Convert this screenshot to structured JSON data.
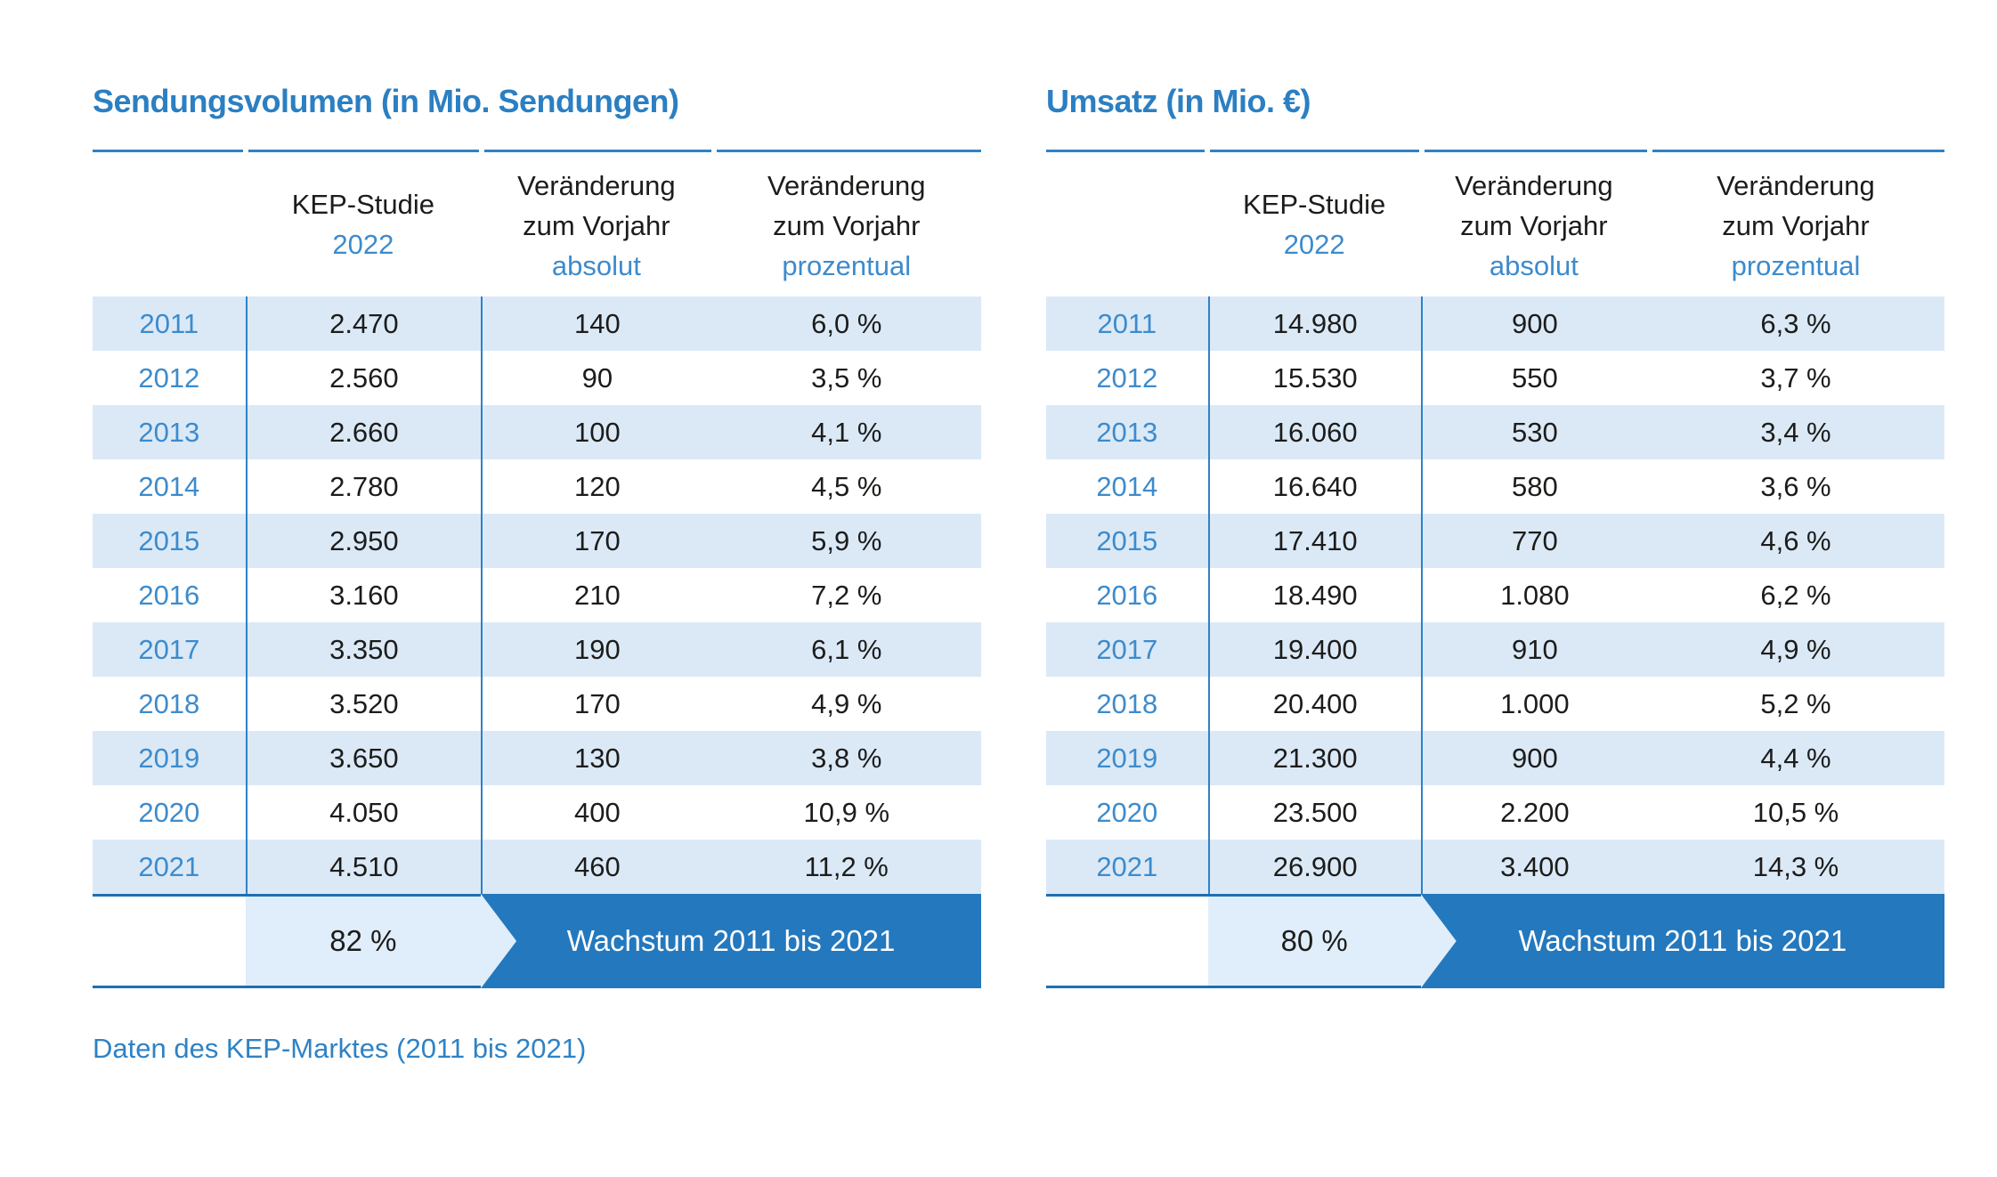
{
  "caption": "Daten des KEP-Marktes (2011 bis 2021)",
  "colors": {
    "accent_blue": "#2b7fc2",
    "light_blue_text": "#3d8bcc",
    "row_stripe": "#dbe9f7",
    "chevron_light": "#e0edfa",
    "growth_bar": "#2478bd",
    "rule_dark": "#1d6fb3",
    "body_text": "#1c1c1a"
  },
  "tables": [
    {
      "title": "Sendungsvolumen (in Mio. Sendungen)",
      "header": {
        "study_line1": "KEP-Studie",
        "study_line2": "2022",
        "change_line1": "Veränderung",
        "change_line2": "zum Vorjahr",
        "absolute_label": "absolut",
        "percent_label": "prozentual"
      },
      "rows": [
        {
          "year": "2011",
          "value": "2.470",
          "abs": "140",
          "pct": "6,0 %"
        },
        {
          "year": "2012",
          "value": "2.560",
          "abs": "90",
          "pct": "3,5 %"
        },
        {
          "year": "2013",
          "value": "2.660",
          "abs": "100",
          "pct": "4,1 %"
        },
        {
          "year": "2014",
          "value": "2.780",
          "abs": "120",
          "pct": "4,5 %"
        },
        {
          "year": "2015",
          "value": "2.950",
          "abs": "170",
          "pct": "5,9 %"
        },
        {
          "year": "2016",
          "value": "3.160",
          "abs": "210",
          "pct": "7,2 %"
        },
        {
          "year": "2017",
          "value": "3.350",
          "abs": "190",
          "pct": "6,1 %"
        },
        {
          "year": "2018",
          "value": "3.520",
          "abs": "170",
          "pct": "4,9 %"
        },
        {
          "year": "2019",
          "value": "3.650",
          "abs": "130",
          "pct": "3,8 %"
        },
        {
          "year": "2020",
          "value": "4.050",
          "abs": "400",
          "pct": "10,9 %"
        },
        {
          "year": "2021",
          "value": "4.510",
          "abs": "460",
          "pct": "11,2 %"
        }
      ],
      "growth": {
        "value": "82 %",
        "label": "Wachstum 2011 bis 2021"
      }
    },
    {
      "title": "Umsatz (in Mio. €)",
      "header": {
        "study_line1": "KEP-Studie",
        "study_line2": "2022",
        "change_line1": "Veränderung",
        "change_line2": "zum Vorjahr",
        "absolute_label": "absolut",
        "percent_label": "prozentual"
      },
      "rows": [
        {
          "year": "2011",
          "value": "14.980",
          "abs": "900",
          "pct": "6,3 %"
        },
        {
          "year": "2012",
          "value": "15.530",
          "abs": "550",
          "pct": "3,7 %"
        },
        {
          "year": "2013",
          "value": "16.060",
          "abs": "530",
          "pct": "3,4 %"
        },
        {
          "year": "2014",
          "value": "16.640",
          "abs": "580",
          "pct": "3,6 %"
        },
        {
          "year": "2015",
          "value": "17.410",
          "abs": "770",
          "pct": "4,6 %"
        },
        {
          "year": "2016",
          "value": "18.490",
          "abs": "1.080",
          "pct": "6,2 %"
        },
        {
          "year": "2017",
          "value": "19.400",
          "abs": "910",
          "pct": "4,9 %"
        },
        {
          "year": "2018",
          "value": "20.400",
          "abs": "1.000",
          "pct": "5,2 %"
        },
        {
          "year": "2019",
          "value": "21.300",
          "abs": "900",
          "pct": "4,4 %"
        },
        {
          "year": "2020",
          "value": "23.500",
          "abs": "2.200",
          "pct": "10,5 %"
        },
        {
          "year": "2021",
          "value": "26.900",
          "abs": "3.400",
          "pct": "14,3 %"
        }
      ],
      "growth": {
        "value": "80 %",
        "label": "Wachstum 2011 bis 2021"
      }
    }
  ],
  "chart_data": [
    {
      "type": "table",
      "title": "Sendungsvolumen (in Mio. Sendungen)",
      "columns": [
        "",
        "KEP-Studie 2022",
        "Veränderung zum Vorjahr absolut",
        "Veränderung zum Vorjahr prozentual"
      ],
      "rows": [
        [
          2011,
          2470,
          140,
          6.0
        ],
        [
          2012,
          2560,
          90,
          3.5
        ],
        [
          2013,
          2660,
          100,
          4.1
        ],
        [
          2014,
          2780,
          120,
          4.5
        ],
        [
          2015,
          2950,
          170,
          5.9
        ],
        [
          2016,
          3160,
          210,
          7.2
        ],
        [
          2017,
          3350,
          190,
          6.1
        ],
        [
          2018,
          3520,
          170,
          4.9
        ],
        [
          2019,
          3650,
          130,
          3.8
        ],
        [
          2020,
          4050,
          400,
          10.9
        ],
        [
          2021,
          4510,
          460,
          11.2
        ]
      ],
      "growth_2011_2021_percent": 82,
      "growth_label": "Wachstum 2011 bis 2021"
    },
    {
      "type": "table",
      "title": "Umsatz (in Mio. €)",
      "columns": [
        "",
        "KEP-Studie 2022",
        "Veränderung zum Vorjahr absolut",
        "Veränderung zum Vorjahr prozentual"
      ],
      "rows": [
        [
          2011,
          14980,
          900,
          6.3
        ],
        [
          2012,
          15530,
          550,
          3.7
        ],
        [
          2013,
          16060,
          530,
          3.4
        ],
        [
          2014,
          16640,
          580,
          3.6
        ],
        [
          2015,
          17410,
          770,
          4.6
        ],
        [
          2016,
          18490,
          1080,
          6.2
        ],
        [
          2017,
          19400,
          910,
          4.9
        ],
        [
          2018,
          20400,
          1000,
          5.2
        ],
        [
          2019,
          21300,
          900,
          4.4
        ],
        [
          2020,
          23500,
          2200,
          10.5
        ],
        [
          2021,
          26900,
          3400,
          14.3
        ]
      ],
      "growth_2011_2021_percent": 80,
      "growth_label": "Wachstum 2011 bis 2021"
    }
  ]
}
